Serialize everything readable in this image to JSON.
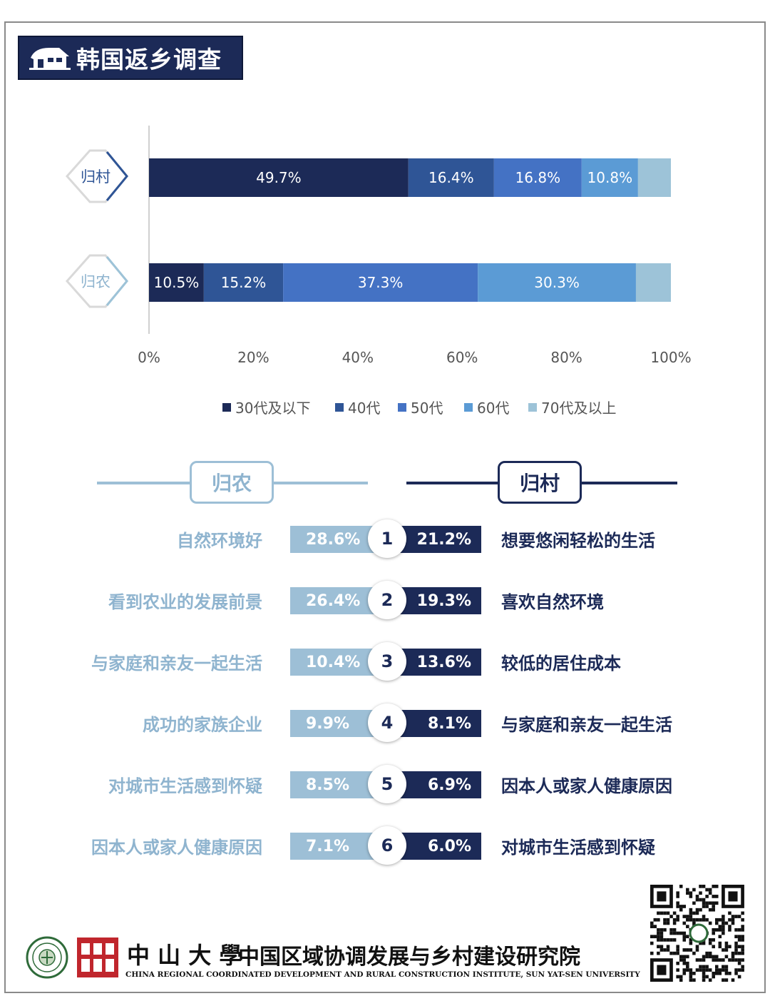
{
  "page_title": "韩国返乡调查",
  "chart_data": {
    "type": "bar",
    "orientation": "horizontal",
    "stacked": true,
    "categories": [
      "归村",
      "归农"
    ],
    "series": [
      {
        "name": "30代及以下",
        "color": "#1c2a57",
        "values": [
          49.7,
          10.5
        ]
      },
      {
        "name": "40代",
        "color": "#2f5596",
        "values": [
          16.4,
          15.2
        ]
      },
      {
        "name": "50代",
        "color": "#4472c4",
        "values": [
          16.8,
          37.3
        ]
      },
      {
        "name": "60代",
        "color": "#5b9bd5",
        "values": [
          10.8,
          30.3
        ]
      },
      {
        "name": "70代及以上",
        "color": "#9dc3d8",
        "values": [
          6.3,
          6.7
        ]
      }
    ],
    "data_labels": [
      [
        "49.7%",
        "16.4%",
        "16.8%",
        "10.8%",
        ""
      ],
      [
        "10.5%",
        "15.2%",
        "37.3%",
        "30.3%",
        ""
      ]
    ],
    "xlim": [
      0,
      100
    ],
    "xticks": [
      "0%",
      "20%",
      "40%",
      "60%",
      "80%",
      "100%"
    ],
    "legend_position": "bottom",
    "grid": false
  },
  "comparison": {
    "left_title": "归农",
    "right_title": "归村",
    "colors": {
      "left": "#9dbfd6",
      "right": "#1c2a57"
    },
    "rows": [
      {
        "rank": "1",
        "left_reason": "自然环境好",
        "left_value": "28.6%",
        "right_value": "21.2%",
        "right_reason": "想要悠闲轻松的生活"
      },
      {
        "rank": "2",
        "left_reason": "看到农业的发展前景",
        "left_value": "26.4%",
        "right_value": "19.3%",
        "right_reason": "喜欢自然环境"
      },
      {
        "rank": "3",
        "left_reason": "与家庭和亲友一起生活",
        "left_value": "10.4%",
        "right_value": "13.6%",
        "right_reason": "较低的居住成本"
      },
      {
        "rank": "4",
        "left_reason": "成功的家族企业",
        "left_value": "9.9%",
        "right_value": "8.1%",
        "right_reason": "与家庭和亲友一起生活"
      },
      {
        "rank": "5",
        "left_reason": "对城市生活感到怀疑",
        "left_value": "8.5%",
        "right_value": "6.9%",
        "right_reason": "因本人或家人健康原因"
      },
      {
        "rank": "6",
        "left_reason": "因本人或家人健康原因",
        "left_value": "7.1%",
        "right_value": "6.0%",
        "right_reason": "对城市生活感到怀疑"
      }
    ]
  },
  "footer": {
    "university": "中 山 大 學",
    "institute": "中国区域协调发展与乡村建设研究院",
    "english": "CHINA REGIONAL COORDINATED DEVELOPMENT AND RURAL CONSTRUCTION INSTITUTE, SUN YAT-SEN UNIVERSITY",
    "icons": [
      "university-seal-icon",
      "institute-logo-icon",
      "qr-code-icon"
    ]
  }
}
